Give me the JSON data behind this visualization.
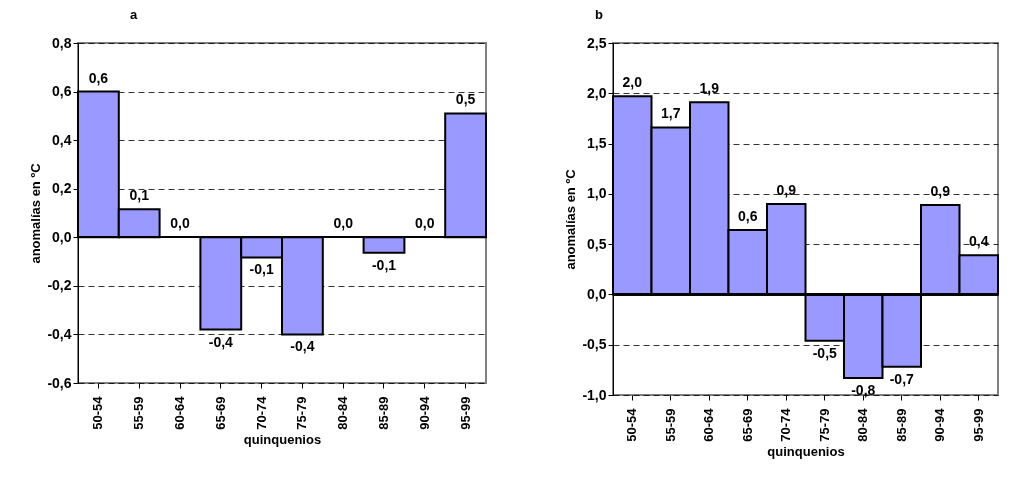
{
  "chart_data": [
    {
      "type": "bar",
      "title": "a",
      "xlabel": "quinquenios",
      "ylabel": "anomalías en ºC",
      "categories": [
        "50-54",
        "55-59",
        "60-64",
        "65-69",
        "70-74",
        "75-79",
        "80-84",
        "85-89",
        "90-94",
        "95-99"
      ],
      "values": [
        0.6,
        0.115,
        0,
        -0.38,
        -0.083,
        -0.4,
        0,
        -0.064,
        0,
        0.51
      ],
      "value_labels": [
        "0,6",
        "0,1",
        "0,0",
        "-0,4",
        "-0,1",
        "-0,4",
        "0,0",
        "-0,1",
        "0,0",
        "0,5"
      ],
      "color": "#9999ff",
      "ylim": [
        -0.6,
        0.8
      ],
      "yticks": [
        {
          "value": -0.6,
          "label": "-0,6"
        },
        {
          "value": -0.4,
          "label": "-0,4"
        },
        {
          "value": -0.2,
          "label": "-0,2"
        },
        {
          "value": 0,
          "label": "0,0"
        },
        {
          "value": 0.2,
          "label": "0,2"
        },
        {
          "value": 0.4,
          "label": "0,4"
        },
        {
          "value": 0.6,
          "label": "0,6"
        },
        {
          "value": 0.8,
          "label": "0,8"
        }
      ],
      "grid": "y"
    },
    {
      "type": "bar",
      "title": "b",
      "xlabel": "quinquenios",
      "ylabel": "anomalías en ºC",
      "categories": [
        "50-54",
        "55-59",
        "60-64",
        "65-69",
        "70-74",
        "75-79",
        "80-84",
        "85-89",
        "90-94",
        "95-99"
      ],
      "values": [
        1.97,
        1.66,
        1.91,
        0.64,
        0.9,
        -0.46,
        -0.83,
        -0.72,
        0.89,
        0.39
      ],
      "value_labels": [
        "2,0",
        "1,7",
        "1,9",
        "0,6",
        "0,9",
        "-0,5",
        "-0,8",
        "-0,7",
        "0,9",
        "0,4"
      ],
      "color": "#9999ff",
      "ylim": [
        -1.0,
        2.5
      ],
      "yticks": [
        {
          "value": -1.0,
          "label": "-1,0"
        },
        {
          "value": -0.5,
          "label": "-0,5"
        },
        {
          "value": 0,
          "label": "0,0"
        },
        {
          "value": 0.5,
          "label": "0,5"
        },
        {
          "value": 1.0,
          "label": "1,0"
        },
        {
          "value": 1.5,
          "label": "1,5"
        },
        {
          "value": 2.0,
          "label": "2,0"
        },
        {
          "value": 2.5,
          "label": "2,5"
        }
      ],
      "grid": "y"
    }
  ]
}
